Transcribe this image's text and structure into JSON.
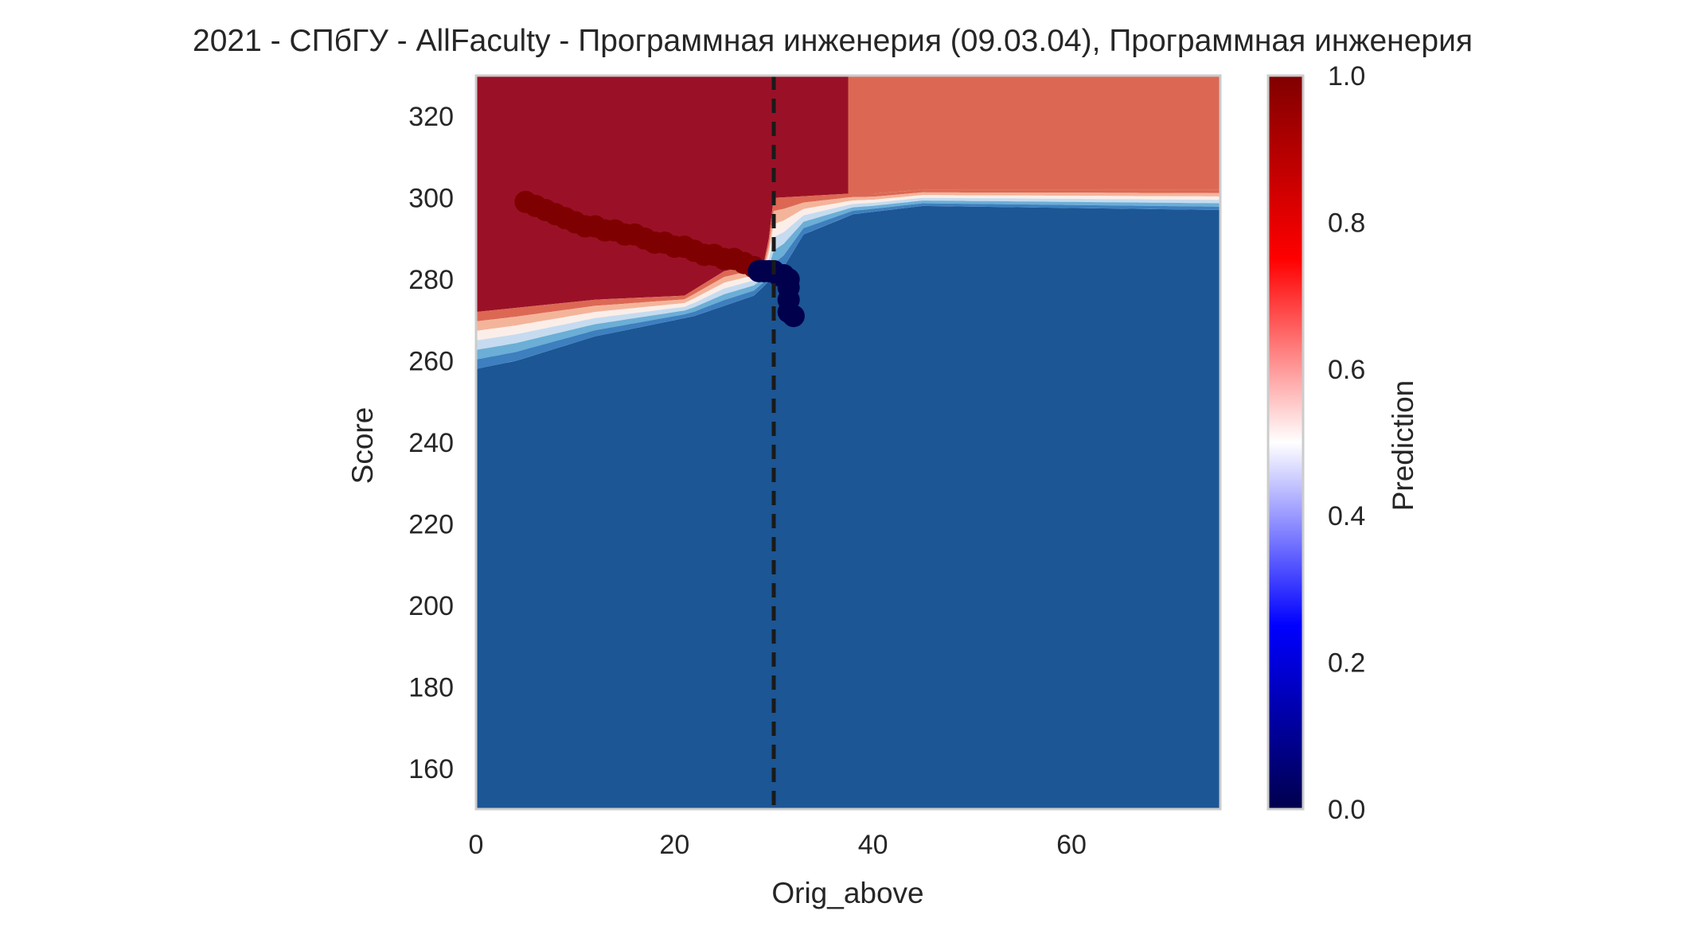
{
  "chart_data": {
    "type": "heatmap",
    "title": "2021 - СПбГУ - AllFaculty - Программная инженерия (09.03.04), Программная инженерия",
    "xlabel": "Orig_above",
    "ylabel": "Score",
    "xlim": [
      0,
      75
    ],
    "ylim": [
      150,
      330
    ],
    "x_ticks": [
      0,
      20,
      40,
      60
    ],
    "y_ticks": [
      160,
      180,
      200,
      220,
      240,
      260,
      280,
      300,
      320
    ],
    "grid": false,
    "threshold_line": {
      "x": 30,
      "style": "dashed",
      "color": "#1a1a1a"
    },
    "colorbar": {
      "label": "Prediction",
      "min": 0.0,
      "max": 1.0,
      "ticks": [
        "0.0",
        "0.2",
        "0.4",
        "0.6",
        "0.8",
        "1.0"
      ],
      "colormap": "seismic"
    },
    "regions": [
      {
        "name": "high",
        "prediction": 0.95,
        "color": "#9a1127",
        "polygon": [
          [
            0,
            330
          ],
          [
            37.5,
            330
          ],
          [
            37.5,
            301
          ],
          [
            30,
            300
          ],
          [
            29.5,
            290
          ],
          [
            29,
            284
          ],
          [
            25,
            282
          ],
          [
            21,
            276
          ],
          [
            12,
            275
          ],
          [
            4,
            273
          ],
          [
            0,
            272
          ]
        ]
      },
      {
        "name": "mid-high",
        "prediction": 0.7,
        "color": "#dc6854",
        "polygon": [
          [
            37.5,
            330
          ],
          [
            75,
            330
          ],
          [
            75,
            302
          ],
          [
            45,
            302
          ],
          [
            40,
            301
          ],
          [
            37.5,
            301
          ]
        ]
      },
      {
        "name": "low",
        "prediction": 0.1,
        "color": "#1c5694",
        "polygon": [
          [
            0,
            150
          ],
          [
            75,
            150
          ],
          [
            75,
            297
          ],
          [
            45,
            298
          ],
          [
            38,
            296
          ],
          [
            33,
            291
          ],
          [
            31,
            283
          ],
          [
            28,
            276
          ],
          [
            22,
            271
          ],
          [
            12,
            266
          ],
          [
            4,
            260
          ],
          [
            0,
            258
          ]
        ]
      }
    ],
    "band": {
      "upper": [
        [
          0,
          272
        ],
        [
          4,
          273
        ],
        [
          12,
          275
        ],
        [
          21,
          276
        ],
        [
          25,
          282
        ],
        [
          29,
          284
        ],
        [
          29.5,
          290
        ],
        [
          30,
          300
        ],
        [
          37.5,
          301
        ],
        [
          40,
          301
        ],
        [
          45,
          302
        ],
        [
          75,
          302
        ]
      ],
      "lower": [
        [
          0,
          258
        ],
        [
          4,
          260
        ],
        [
          12,
          266
        ],
        [
          22,
          271
        ],
        [
          28,
          276
        ],
        [
          31,
          283
        ],
        [
          33,
          291
        ],
        [
          38,
          296
        ],
        [
          45,
          298
        ],
        [
          75,
          297
        ]
      ],
      "colors": [
        "#dc6854",
        "#f4b49a",
        "#fbeee8",
        "#c6dbef",
        "#6baed6",
        "#3d7fbf"
      ]
    },
    "series": [
      {
        "marker_color": "#7f0000",
        "x": [
          5,
          6,
          7,
          8,
          9,
          10,
          11,
          12,
          13,
          14,
          15,
          16,
          17,
          18,
          19,
          20,
          21,
          22,
          23,
          24,
          25,
          26,
          27,
          28
        ],
        "y": [
          299,
          298,
          297,
          296,
          295,
          294,
          293,
          293,
          292,
          292,
          291,
          291,
          290,
          289,
          289,
          288,
          288,
          287,
          286,
          286,
          285,
          285,
          284,
          283
        ]
      },
      {
        "marker_color": "#00004d",
        "x": [
          28.5,
          29,
          29.5,
          30,
          30.5,
          31,
          31.5,
          31.5,
          31.5,
          31.5,
          32
        ],
        "y": [
          282,
          282,
          282,
          282,
          281,
          281,
          280,
          278,
          275,
          272,
          271
        ]
      }
    ]
  }
}
